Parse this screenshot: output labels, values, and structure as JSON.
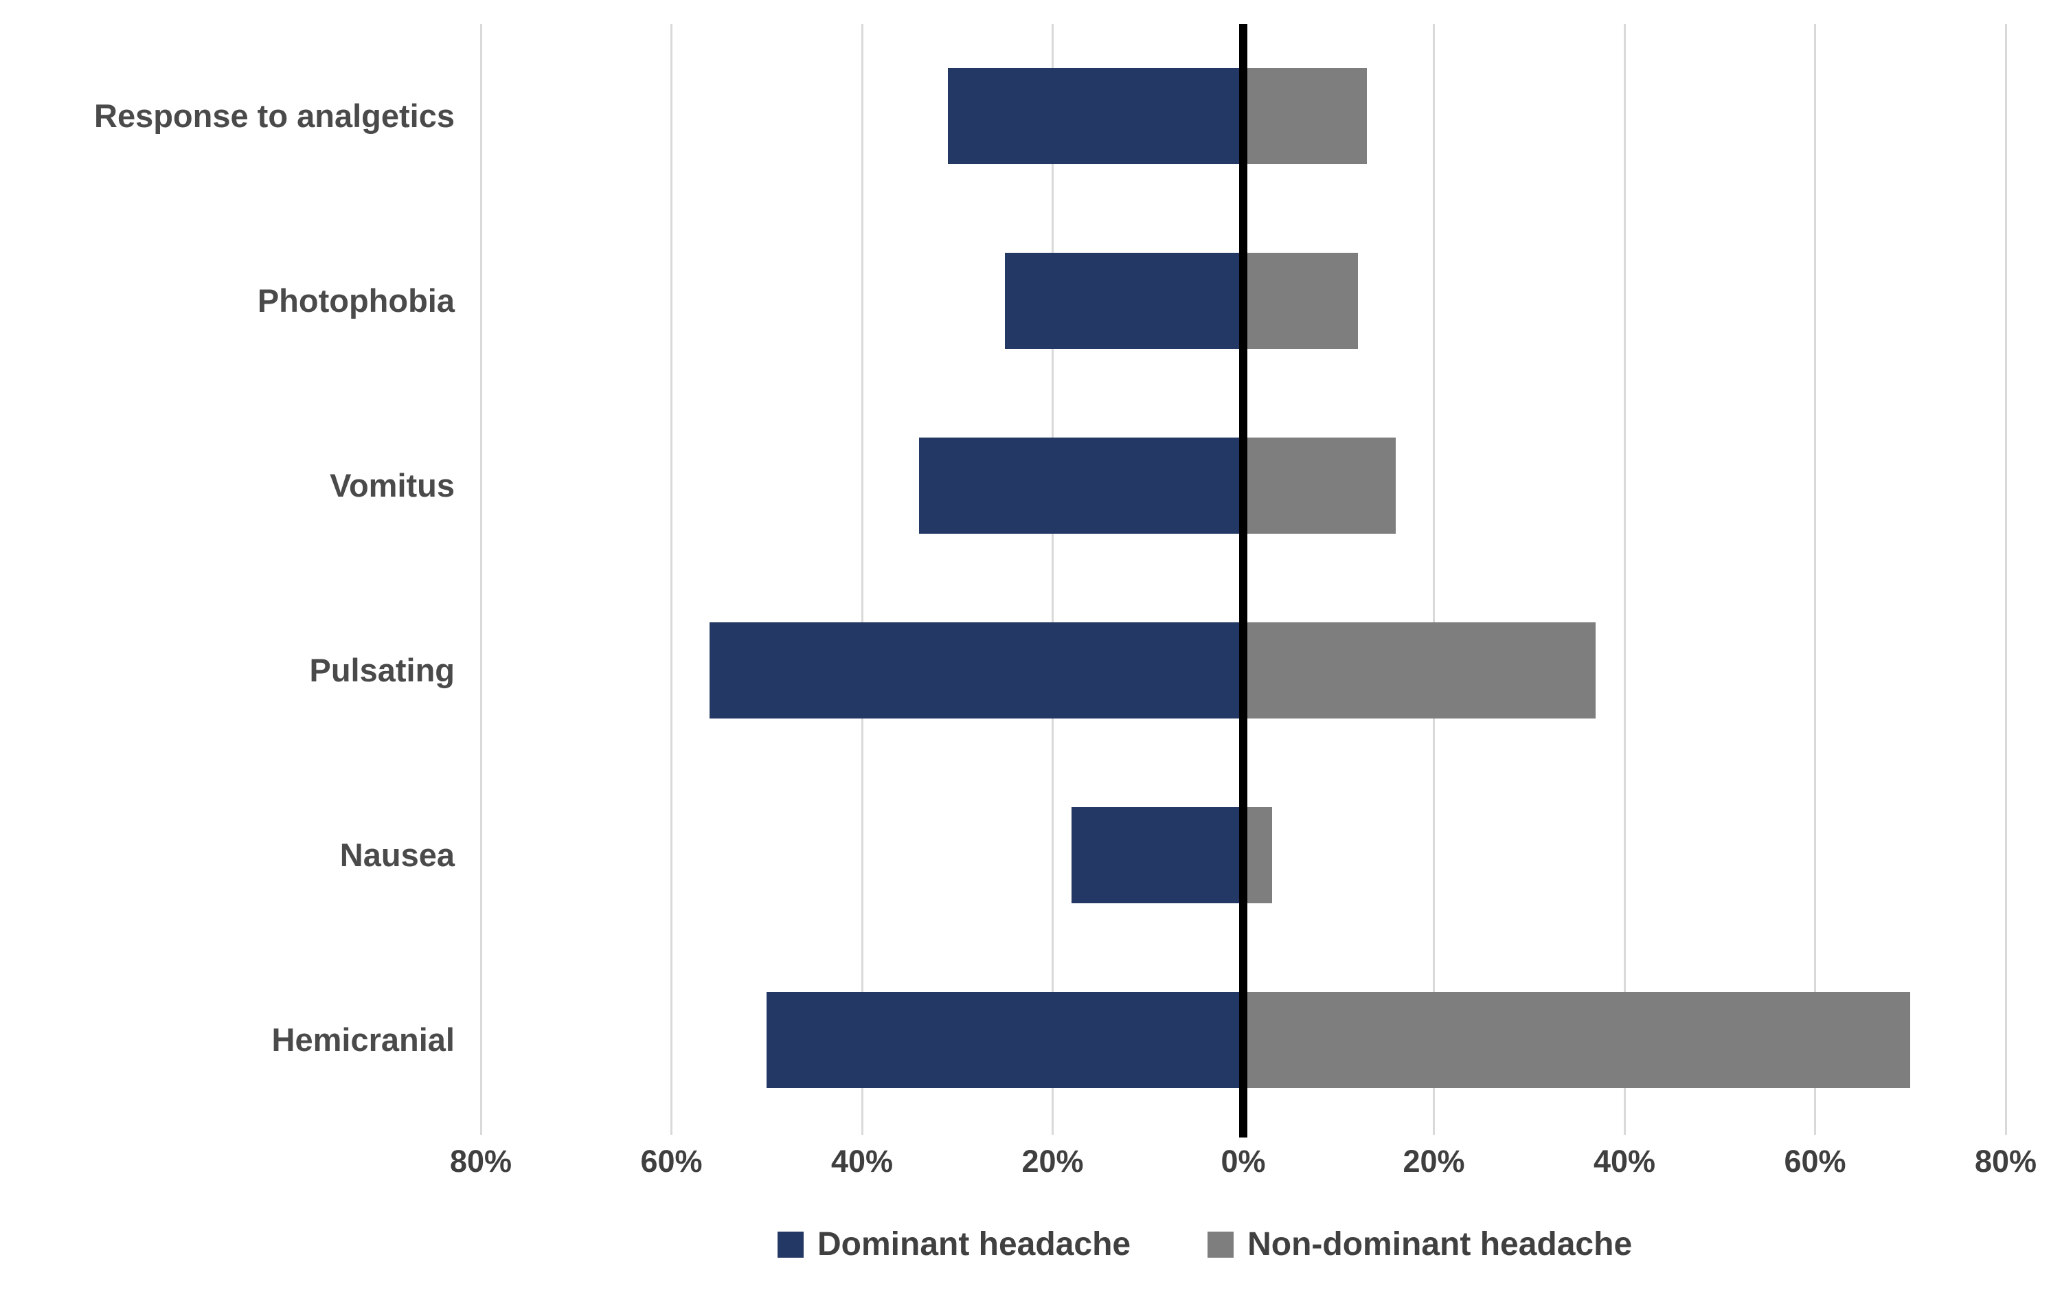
{
  "chart_data": {
    "type": "bar",
    "variant": "diverging-horizontal-tornado",
    "title": "",
    "xlabel": "",
    "ylabel": "",
    "categories": [
      "Response to analgetics",
      "Photophobia",
      "Vomitus",
      "Pulsating",
      "Nausea",
      "Hemicranial"
    ],
    "series": [
      {
        "name": "Dominant headache",
        "side": "left",
        "color": "#233864",
        "unit": "%",
        "values": [
          31,
          25,
          34,
          56,
          18,
          50
        ]
      },
      {
        "name": "Non-dominant headache",
        "side": "right",
        "color": "#7e7e7e",
        "unit": "%",
        "values": [
          13,
          12,
          16,
          37,
          3,
          70
        ]
      }
    ],
    "x_axis": {
      "tick_values": [
        -80,
        -60,
        -40,
        -20,
        0,
        20,
        40,
        60,
        80
      ],
      "tick_labels": [
        "80%",
        "60%",
        "40%",
        "20%",
        "0%",
        "20%",
        "40%",
        "60%",
        "80%"
      ],
      "min": -85,
      "max": 85,
      "unit": "%"
    },
    "grid": true,
    "legend_position": "bottom",
    "colors": {
      "dominant_bar": "#233864",
      "non_dominant_bar": "#7e7e7e",
      "zero_axis_line": "#000000",
      "gridline": "#d9d9d9",
      "category_text": "#4a4a4a",
      "tick_text": "#3f3f3f",
      "legend_text": "#404040",
      "background": "#ffffff"
    }
  }
}
